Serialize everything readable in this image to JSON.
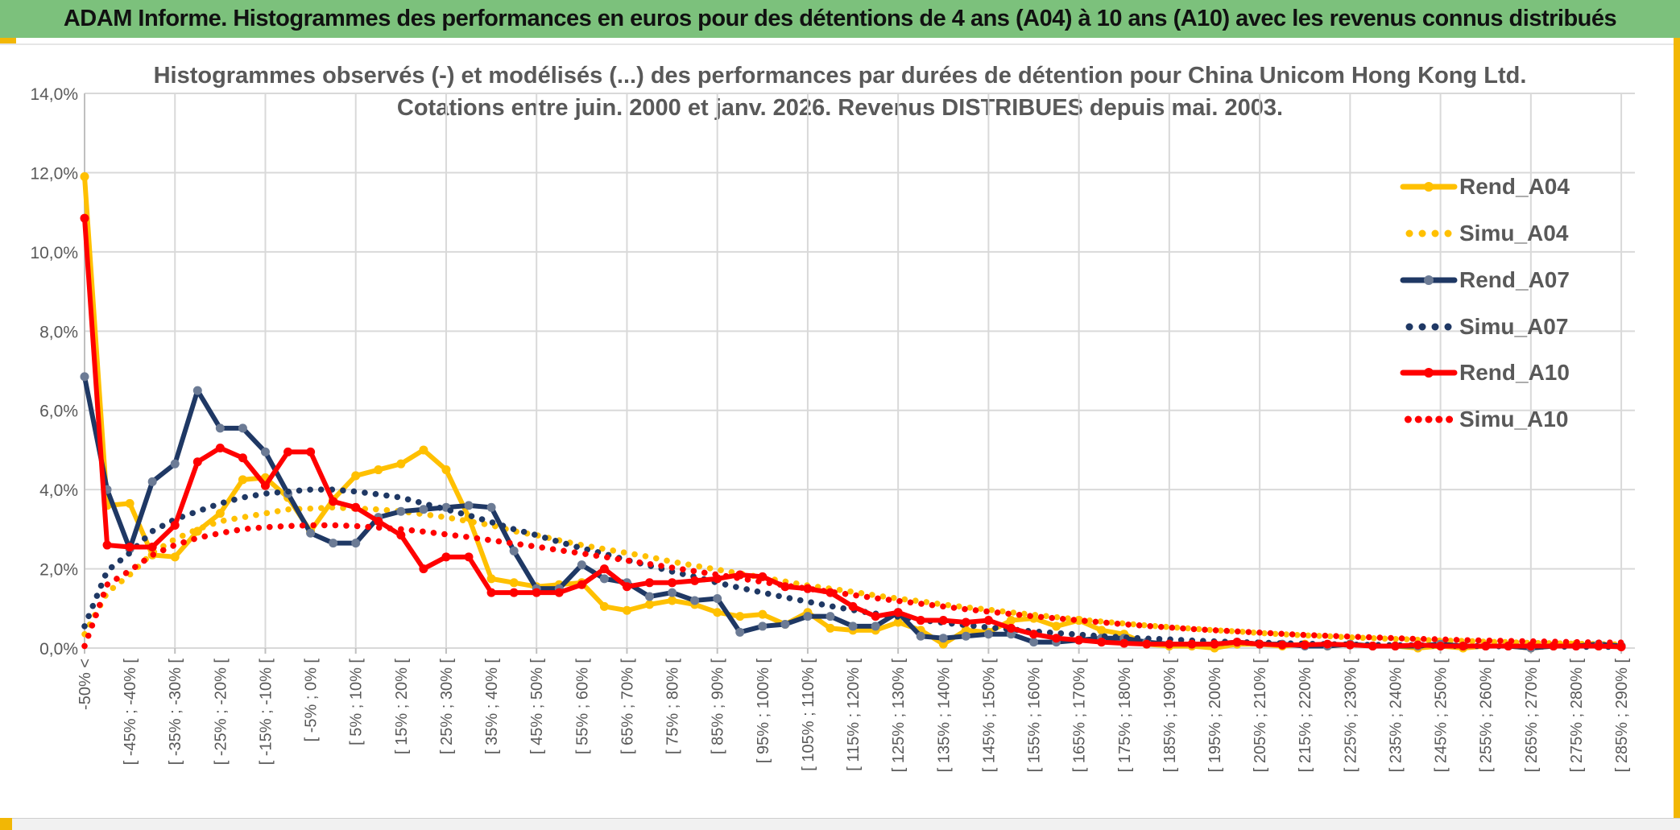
{
  "header": {
    "title": "ADAM Informe. Histogrammes des performances en euros pour des détentions de 4 ans (A04) à 10 ans (A10) avec les revenus connus distribués"
  },
  "colors": {
    "header_green": "#7CC17C",
    "accent_gold": "#F2B705",
    "grid": "#D9D9D9",
    "axis": "#BFBFBF",
    "text_gray": "#595959",
    "bottom_strip": "#F1F1F1"
  },
  "chart_data": {
    "type": "line",
    "title_line1": "Histogrammes observés (-) et modélisés (...) des performances par durées de détention pour China Unicom Hong Kong Ltd.",
    "title_line2": "Cotations entre juin. 2000 et janv. 2026. Revenus DISTRIBUES depuis mai. 2003.",
    "ylabel": "",
    "xlabel": "",
    "ylim": [
      0,
      14
    ],
    "y_tick_labels": [
      "0,0%",
      "2,0%",
      "4,0%",
      "6,0%",
      "8,0%",
      "10,0%",
      "12,0%",
      "14,0%"
    ],
    "n_buckets": 69,
    "x_label_stride": 2,
    "x_tick_labels": [
      "-50% <",
      "[ -45% ; -40% [",
      "[ -35% ; -30% [",
      "[ -25% ; -20% [",
      "[ -15% ; -10% [",
      "[ -5% ; 0% [",
      "[ 5% ; 10% [",
      "[ 15% ; 20% [",
      "[ 25% ; 30% [",
      "[ 35% ; 40% [",
      "[ 45% ; 50% [",
      "[ 55% ; 60% [",
      "[ 65% ; 70% [",
      "[ 75% ; 80% [",
      "[ 85% ; 90% [",
      "[ 95% ; 100% [",
      "[ 105% ; 110% [",
      "[ 115% ; 120% [",
      "[ 125% ; 130% [",
      "[ 135% ; 140% [",
      "[ 145% ; 150% [",
      "[ 155% ; 160% [",
      "[ 165% ; 170% [",
      "[ 175% ; 180% [",
      "[ 185% ; 190% [",
      "[ 195% ; 200% [",
      "[ 205% ; 210% [",
      "[ 215% ; 220% [",
      "[ 225% ; 230% [",
      "[ 235% ; 240% [",
      "[ 245% ; 250% [",
      "[ 255% ; 260% [",
      "[ 265% ; 270% [",
      "[ 275% ; 280% [",
      "[ 285% ; 290% ["
    ],
    "grid": true,
    "legend_position": "right",
    "series": [
      {
        "name": "Rend_A04",
        "style": "solid",
        "color": "#FFC000",
        "marker_color": "#FFC000",
        "values": [
          11.9,
          3.6,
          3.65,
          2.35,
          2.3,
          2.95,
          3.4,
          4.25,
          4.3,
          3.8,
          2.95,
          3.75,
          4.35,
          4.5,
          4.65,
          5.0,
          4.5,
          3.3,
          1.75,
          1.65,
          1.55,
          1.6,
          1.65,
          1.05,
          0.95,
          1.1,
          1.2,
          1.1,
          0.9,
          0.8,
          0.85,
          0.6,
          0.9,
          0.5,
          0.45,
          0.45,
          0.65,
          0.45,
          0.1,
          0.45,
          0.4,
          0.7,
          0.75,
          0.55,
          0.7,
          0.45,
          0.35,
          0.1,
          0.05,
          0.05,
          0.0,
          0.1,
          0.1,
          0.05,
          0.1,
          0.05,
          0.1,
          0.05,
          0.05,
          0.0,
          0.05,
          0.0,
          0.05,
          0.05,
          0.0,
          0.05,
          0.1,
          0.05,
          0.05
        ]
      },
      {
        "name": "Simu_A04",
        "style": "dotted",
        "color": "#FFC000",
        "values": [
          0.35,
          1.4,
          1.85,
          2.4,
          2.75,
          3.0,
          3.2,
          3.3,
          3.4,
          3.5,
          3.52,
          3.55,
          3.52,
          3.5,
          3.45,
          3.38,
          3.3,
          3.2,
          3.1,
          2.95,
          2.85,
          2.72,
          2.6,
          2.5,
          2.4,
          2.3,
          2.18,
          2.08,
          1.98,
          1.88,
          1.78,
          1.68,
          1.58,
          1.5,
          1.42,
          1.33,
          1.25,
          1.18,
          1.1,
          1.03,
          0.97,
          0.9,
          0.84,
          0.78,
          0.72,
          0.67,
          0.62,
          0.57,
          0.53,
          0.49,
          0.45,
          0.42,
          0.38,
          0.35,
          0.32,
          0.3,
          0.27,
          0.25,
          0.23,
          0.21,
          0.19,
          0.18,
          0.16,
          0.15,
          0.13,
          0.12,
          0.11,
          0.1,
          0.09
        ]
      },
      {
        "name": "Rend_A07",
        "style": "solid",
        "color": "#1F3864",
        "marker_color": "#6C7B95",
        "values": [
          6.85,
          4.0,
          2.5,
          4.2,
          4.65,
          6.5,
          5.55,
          5.55,
          4.95,
          3.9,
          2.9,
          2.65,
          2.65,
          3.3,
          3.45,
          3.5,
          3.55,
          3.6,
          3.55,
          2.45,
          1.5,
          1.5,
          2.1,
          1.75,
          1.65,
          1.3,
          1.4,
          1.2,
          1.25,
          0.4,
          0.55,
          0.6,
          0.8,
          0.8,
          0.55,
          0.55,
          0.9,
          0.3,
          0.25,
          0.3,
          0.35,
          0.35,
          0.15,
          0.15,
          0.2,
          0.25,
          0.25,
          0.15,
          0.1,
          0.1,
          0.1,
          0.15,
          0.1,
          0.1,
          0.05,
          0.05,
          0.1,
          0.05,
          0.05,
          0.05,
          0.1,
          0.05,
          0.05,
          0.05,
          0.0,
          0.05,
          0.05,
          0.1,
          0.05
        ]
      },
      {
        "name": "Simu_A07",
        "style": "dotted",
        "color": "#1F3864",
        "values": [
          0.55,
          1.95,
          2.4,
          2.95,
          3.25,
          3.45,
          3.65,
          3.8,
          3.9,
          3.95,
          4.0,
          4.0,
          3.95,
          3.88,
          3.8,
          3.65,
          3.5,
          3.35,
          3.18,
          3.0,
          2.85,
          2.68,
          2.52,
          2.38,
          2.22,
          2.08,
          1.93,
          1.8,
          1.65,
          1.52,
          1.4,
          1.28,
          1.17,
          1.06,
          0.96,
          0.87,
          0.79,
          0.71,
          0.64,
          0.58,
          0.52,
          0.47,
          0.42,
          0.38,
          0.34,
          0.3,
          0.27,
          0.24,
          0.22,
          0.19,
          0.17,
          0.15,
          0.14,
          0.12,
          0.11,
          0.1,
          0.09,
          0.08,
          0.07,
          0.07,
          0.06,
          0.05,
          0.05,
          0.04,
          0.04,
          0.04,
          0.03,
          0.03,
          0.03
        ]
      },
      {
        "name": "Rend_A10",
        "style": "solid",
        "color": "#FF0000",
        "marker_color": "#FF0000",
        "values": [
          10.85,
          2.6,
          2.55,
          2.55,
          3.1,
          4.7,
          5.05,
          4.8,
          4.1,
          4.95,
          4.95,
          3.7,
          3.55,
          3.2,
          2.85,
          2.0,
          2.3,
          2.3,
          1.4,
          1.4,
          1.4,
          1.4,
          1.6,
          2.0,
          1.55,
          1.65,
          1.65,
          1.7,
          1.75,
          1.85,
          1.8,
          1.55,
          1.5,
          1.4,
          1.05,
          0.8,
          0.9,
          0.7,
          0.7,
          0.65,
          0.7,
          0.5,
          0.35,
          0.25,
          0.2,
          0.15,
          0.12,
          0.1,
          0.1,
          0.1,
          0.1,
          0.15,
          0.1,
          0.08,
          0.08,
          0.1,
          0.08,
          0.05,
          0.05,
          0.08,
          0.05,
          0.05,
          0.05,
          0.05,
          0.05,
          0.05,
          0.05,
          0.05,
          0.03
        ]
      },
      {
        "name": "Simu_A10",
        "style": "dotted",
        "color": "#FF0000",
        "values": [
          0.05,
          1.6,
          1.95,
          2.35,
          2.6,
          2.78,
          2.9,
          3.0,
          3.05,
          3.08,
          3.1,
          3.1,
          3.08,
          3.04,
          3.0,
          2.94,
          2.87,
          2.8,
          2.72,
          2.64,
          2.56,
          2.47,
          2.39,
          2.3,
          2.21,
          2.12,
          2.03,
          1.94,
          1.85,
          1.76,
          1.67,
          1.58,
          1.5,
          1.42,
          1.34,
          1.26,
          1.19,
          1.12,
          1.05,
          0.98,
          0.92,
          0.86,
          0.8,
          0.75,
          0.7,
          0.65,
          0.6,
          0.56,
          0.52,
          0.48,
          0.45,
          0.42,
          0.39,
          0.36,
          0.33,
          0.31,
          0.29,
          0.27,
          0.25,
          0.23,
          0.22,
          0.2,
          0.19,
          0.18,
          0.17,
          0.16,
          0.15,
          0.14,
          0.14
        ]
      }
    ]
  }
}
